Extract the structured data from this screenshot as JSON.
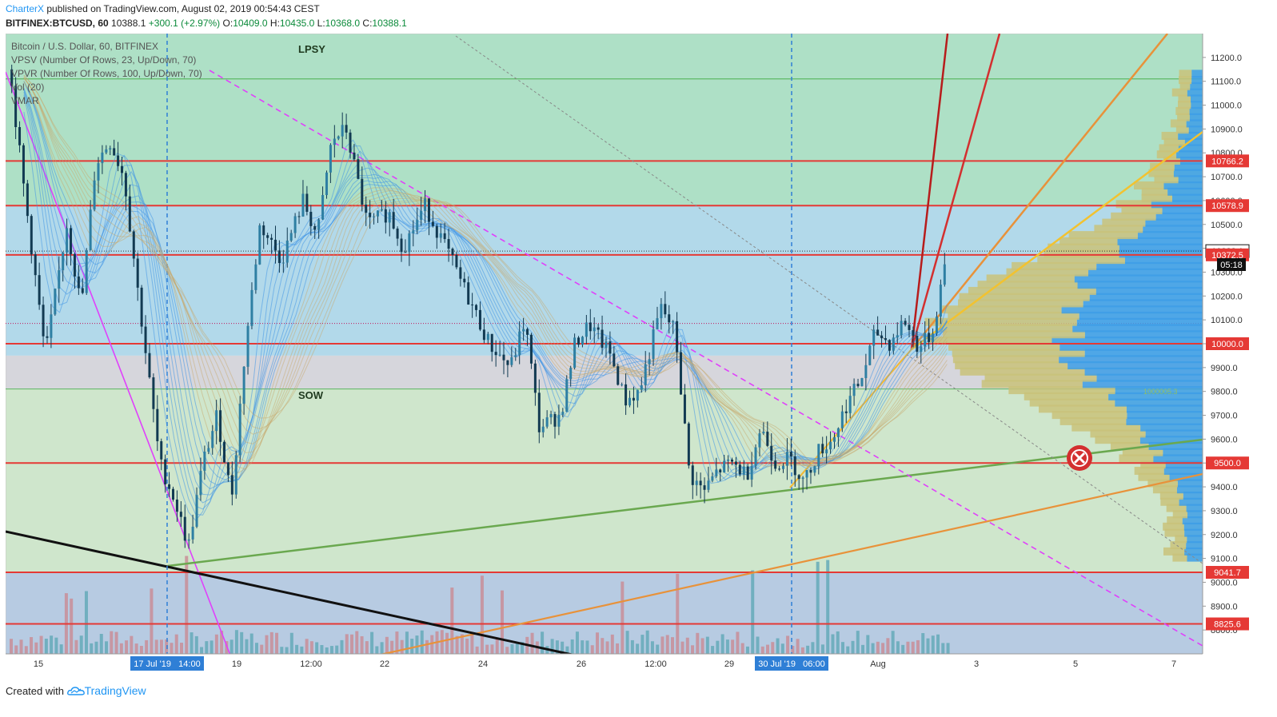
{
  "header": {
    "author": "CharterX",
    "published_text": "published on TradingView.com, August 02, 2019 00:54:43 CEST",
    "symbol": "BITFINEX:BTCUSD, 60",
    "last": "10388.1",
    "change": "+300.1 (+2.97%)",
    "o_label": "O:",
    "o_value": "10409.0",
    "h_label": "H:",
    "h_value": "10435.0",
    "l_label": "L:",
    "l_value": "10368.0",
    "c_label": "C:",
    "c_value": "10388.1"
  },
  "legend": {
    "line1": "Bitcoin / U.S. Dollar, 60, BITFINEX",
    "line2": "VPSV (Number Of Rows, 23, Up/Down, 70)",
    "line3": "VPVR (Number Of Rows, 100, Up/Down, 70)",
    "line4": "Vol (20)",
    "line5": "VMAR"
  },
  "annotations": {
    "lpsy": "LPSY",
    "sow": "SOW",
    "poc": "1000005.3"
  },
  "countdown": "05:18",
  "time_labels": {
    "left": "17 Jul '19   14:00",
    "right": "30 Jul '19   06:00"
  },
  "colors": {
    "accent": "#2196f3",
    "level_line": "#e53935",
    "up_trend_green": "#6aa84f",
    "fan_red_dark": "#b71c1c",
    "fan_red": "#d32f2f",
    "fan_orange": "#e8923a",
    "fan_yellow": "#f2c230",
    "downtrend_magenta": "#e040fb",
    "downtrend_black": "#111111"
  },
  "icons": {
    "invalid_marker": "x-circle-icon",
    "brand_logo": "tradingview-cloud-icon"
  },
  "footer": {
    "created_with": "Created with",
    "brand": "TradingView"
  },
  "chart_data": {
    "type": "candlestick",
    "x_ticks": [
      "15",
      "19",
      "12:00",
      "22",
      "24",
      "26",
      "12:00",
      "29",
      "Aug",
      "3",
      "5",
      "7"
    ],
    "y_ticks": [
      "11200.0",
      "11100.0",
      "11000.0",
      "10900.0",
      "10800.0",
      "10700.0",
      "10600.0",
      "10500.0",
      "10400.0",
      "10300.0",
      "10200.0",
      "10100.0",
      "10000.0",
      "9900.0",
      "9800.0",
      "9700.0",
      "9600.0",
      "9500.0",
      "9400.0",
      "9300.0",
      "9200.0",
      "9100.0",
      "9000.0",
      "8900.0",
      "8800.0"
    ],
    "ylim": [
      8700,
      11300
    ],
    "price_levels": [
      {
        "label": "10766.2",
        "value": 10766.2
      },
      {
        "label": "10578.9",
        "value": 10578.9
      },
      {
        "label": "10388.1",
        "value": 10388.1
      },
      {
        "label": "10372.5",
        "value": 10372.5
      },
      {
        "label": "10000.0",
        "value": 10000.0
      },
      {
        "label": "9500.0",
        "value": 9500.0
      },
      {
        "label": "9041.7",
        "value": 9041.7
      },
      {
        "label": "8825.6",
        "value": 8825.6
      }
    ],
    "price_path": [
      {
        "t": 0,
        "p": 11150
      },
      {
        "t": 2,
        "p": 10650
      },
      {
        "t": 5,
        "p": 9950
      },
      {
        "t": 8,
        "p": 10500
      },
      {
        "t": 10,
        "p": 10150
      },
      {
        "t": 12,
        "p": 10750
      },
      {
        "t": 14,
        "p": 10850
      },
      {
        "t": 16,
        "p": 10700
      },
      {
        "t": 18,
        "p": 10200
      },
      {
        "t": 21,
        "p": 9500
      },
      {
        "t": 23,
        "p": 9350
      },
      {
        "t": 25,
        "p": 9150
      },
      {
        "t": 27,
        "p": 9500
      },
      {
        "t": 29,
        "p": 9700
      },
      {
        "t": 31,
        "p": 9350
      },
      {
        "t": 33,
        "p": 10000
      },
      {
        "t": 35,
        "p": 10500
      },
      {
        "t": 38,
        "p": 10350
      },
      {
        "t": 41,
        "p": 10600
      },
      {
        "t": 43,
        "p": 10450
      },
      {
        "t": 45,
        "p": 10850
      },
      {
        "t": 47,
        "p": 10900
      },
      {
        "t": 50,
        "p": 10500
      },
      {
        "t": 53,
        "p": 10550
      },
      {
        "t": 55,
        "p": 10400
      },
      {
        "t": 58,
        "p": 10580
      },
      {
        "t": 61,
        "p": 10400
      },
      {
        "t": 64,
        "p": 10200
      },
      {
        "t": 67,
        "p": 10000
      },
      {
        "t": 70,
        "p": 9900
      },
      {
        "t": 72,
        "p": 10100
      },
      {
        "t": 74,
        "p": 9650
      },
      {
        "t": 77,
        "p": 9700
      },
      {
        "t": 79,
        "p": 10000
      },
      {
        "t": 81,
        "p": 10080
      },
      {
        "t": 84,
        "p": 9950
      },
      {
        "t": 86,
        "p": 9760
      },
      {
        "t": 88,
        "p": 9800
      },
      {
        "t": 91,
        "p": 10150
      },
      {
        "t": 93,
        "p": 10050
      },
      {
        "t": 95,
        "p": 9450
      },
      {
        "t": 97,
        "p": 9380
      },
      {
        "t": 99,
        "p": 9470
      },
      {
        "t": 101,
        "p": 9500
      },
      {
        "t": 103,
        "p": 9450
      },
      {
        "t": 105,
        "p": 9650
      },
      {
        "t": 107,
        "p": 9500
      },
      {
        "t": 109,
        "p": 9520
      },
      {
        "t": 111,
        "p": 9420
      },
      {
        "t": 113,
        "p": 9550
      },
      {
        "t": 115,
        "p": 9600
      },
      {
        "t": 117,
        "p": 9750
      },
      {
        "t": 119,
        "p": 9850
      },
      {
        "t": 121,
        "p": 10050
      },
      {
        "t": 123,
        "p": 10000
      },
      {
        "t": 125,
        "p": 10100
      },
      {
        "t": 127,
        "p": 9980
      },
      {
        "t": 129,
        "p": 10050
      },
      {
        "t": 131,
        "p": 10388
      }
    ]
  }
}
